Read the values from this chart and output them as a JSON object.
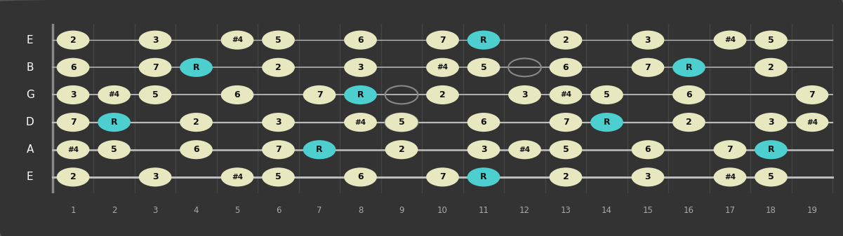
{
  "bg_color": "#333333",
  "fretboard_color": "#111111",
  "string_color": "#bbbbbb",
  "fret_color": "#444444",
  "note_fill_normal": "#e8e8c0",
  "note_fill_root": "#4dcfcf",
  "note_text_color": "#111111",
  "string_names": [
    "E",
    "B",
    "G",
    "D",
    "A",
    "E"
  ],
  "num_frets": 19,
  "fret_numbers": [
    1,
    2,
    3,
    4,
    5,
    6,
    7,
    8,
    9,
    10,
    11,
    12,
    13,
    14,
    15,
    16,
    17,
    18,
    19
  ],
  "notes": [
    {
      "string": 1,
      "fret": 1,
      "label": "2",
      "root": false
    },
    {
      "string": 1,
      "fret": 3,
      "label": "3",
      "root": false
    },
    {
      "string": 1,
      "fret": 5,
      "label": "#4",
      "root": false
    },
    {
      "string": 1,
      "fret": 6,
      "label": "5",
      "root": false
    },
    {
      "string": 1,
      "fret": 8,
      "label": "6",
      "root": false
    },
    {
      "string": 1,
      "fret": 10,
      "label": "7",
      "root": false
    },
    {
      "string": 1,
      "fret": 11,
      "label": "R",
      "root": true
    },
    {
      "string": 1,
      "fret": 13,
      "label": "2",
      "root": false
    },
    {
      "string": 1,
      "fret": 15,
      "label": "3",
      "root": false
    },
    {
      "string": 1,
      "fret": 17,
      "label": "#4",
      "root": false
    },
    {
      "string": 1,
      "fret": 18,
      "label": "5",
      "root": false
    },
    {
      "string": 2,
      "fret": 1,
      "label": "6",
      "root": false
    },
    {
      "string": 2,
      "fret": 3,
      "label": "7",
      "root": false
    },
    {
      "string": 2,
      "fret": 4,
      "label": "R",
      "root": true
    },
    {
      "string": 2,
      "fret": 6,
      "label": "2",
      "root": false
    },
    {
      "string": 2,
      "fret": 8,
      "label": "3",
      "root": false
    },
    {
      "string": 2,
      "fret": 10,
      "label": "#4",
      "root": false
    },
    {
      "string": 2,
      "fret": 11,
      "label": "5",
      "root": false
    },
    {
      "string": 2,
      "fret": 13,
      "label": "6",
      "root": false
    },
    {
      "string": 2,
      "fret": 15,
      "label": "7",
      "root": false
    },
    {
      "string": 2,
      "fret": 16,
      "label": "R",
      "root": true
    },
    {
      "string": 2,
      "fret": 18,
      "label": "2",
      "root": false
    },
    {
      "string": 3,
      "fret": 1,
      "label": "3",
      "root": false
    },
    {
      "string": 3,
      "fret": 2,
      "label": "#4",
      "root": false
    },
    {
      "string": 3,
      "fret": 3,
      "label": "5",
      "root": false
    },
    {
      "string": 3,
      "fret": 5,
      "label": "6",
      "root": false
    },
    {
      "string": 3,
      "fret": 7,
      "label": "7",
      "root": false
    },
    {
      "string": 3,
      "fret": 8,
      "label": "R",
      "root": true
    },
    {
      "string": 3,
      "fret": 10,
      "label": "2",
      "root": false
    },
    {
      "string": 3,
      "fret": 12,
      "label": "3",
      "root": false
    },
    {
      "string": 3,
      "fret": 13,
      "label": "#4",
      "root": false
    },
    {
      "string": 3,
      "fret": 14,
      "label": "5",
      "root": false
    },
    {
      "string": 3,
      "fret": 16,
      "label": "6",
      "root": false
    },
    {
      "string": 3,
      "fret": 19,
      "label": "7",
      "root": false
    },
    {
      "string": 4,
      "fret": 1,
      "label": "7",
      "root": false
    },
    {
      "string": 4,
      "fret": 2,
      "label": "R",
      "root": true
    },
    {
      "string": 4,
      "fret": 4,
      "label": "2",
      "root": false
    },
    {
      "string": 4,
      "fret": 6,
      "label": "3",
      "root": false
    },
    {
      "string": 4,
      "fret": 8,
      "label": "#4",
      "root": false
    },
    {
      "string": 4,
      "fret": 9,
      "label": "5",
      "root": false
    },
    {
      "string": 4,
      "fret": 11,
      "label": "6",
      "root": false
    },
    {
      "string": 4,
      "fret": 13,
      "label": "7",
      "root": false
    },
    {
      "string": 4,
      "fret": 14,
      "label": "R",
      "root": true
    },
    {
      "string": 4,
      "fret": 16,
      "label": "2",
      "root": false
    },
    {
      "string": 4,
      "fret": 18,
      "label": "3",
      "root": false
    },
    {
      "string": 4,
      "fret": 19,
      "label": "#4",
      "root": false
    },
    {
      "string": 5,
      "fret": 1,
      "label": "#4",
      "root": false
    },
    {
      "string": 5,
      "fret": 2,
      "label": "5",
      "root": false
    },
    {
      "string": 5,
      "fret": 4,
      "label": "6",
      "root": false
    },
    {
      "string": 5,
      "fret": 6,
      "label": "7",
      "root": false
    },
    {
      "string": 5,
      "fret": 7,
      "label": "R",
      "root": true
    },
    {
      "string": 5,
      "fret": 9,
      "label": "2",
      "root": false
    },
    {
      "string": 5,
      "fret": 11,
      "label": "3",
      "root": false
    },
    {
      "string": 5,
      "fret": 12,
      "label": "#4",
      "root": false
    },
    {
      "string": 5,
      "fret": 13,
      "label": "5",
      "root": false
    },
    {
      "string": 5,
      "fret": 15,
      "label": "6",
      "root": false
    },
    {
      "string": 5,
      "fret": 17,
      "label": "7",
      "root": false
    },
    {
      "string": 5,
      "fret": 18,
      "label": "R",
      "root": true
    },
    {
      "string": 6,
      "fret": 1,
      "label": "2",
      "root": false
    },
    {
      "string": 6,
      "fret": 3,
      "label": "3",
      "root": false
    },
    {
      "string": 6,
      "fret": 5,
      "label": "#4",
      "root": false
    },
    {
      "string": 6,
      "fret": 6,
      "label": "5",
      "root": false
    },
    {
      "string": 6,
      "fret": 8,
      "label": "6",
      "root": false
    },
    {
      "string": 6,
      "fret": 10,
      "label": "7",
      "root": false
    },
    {
      "string": 6,
      "fret": 11,
      "label": "R",
      "root": true
    },
    {
      "string": 6,
      "fret": 13,
      "label": "2",
      "root": false
    },
    {
      "string": 6,
      "fret": 15,
      "label": "3",
      "root": false
    },
    {
      "string": 6,
      "fret": 17,
      "label": "#4",
      "root": false
    },
    {
      "string": 6,
      "fret": 18,
      "label": "5",
      "root": false
    }
  ],
  "open_circles": [
    {
      "string": 2,
      "fret": 12
    },
    {
      "string": 3,
      "fret": 9
    },
    {
      "string": 4,
      "fret": 9
    }
  ]
}
